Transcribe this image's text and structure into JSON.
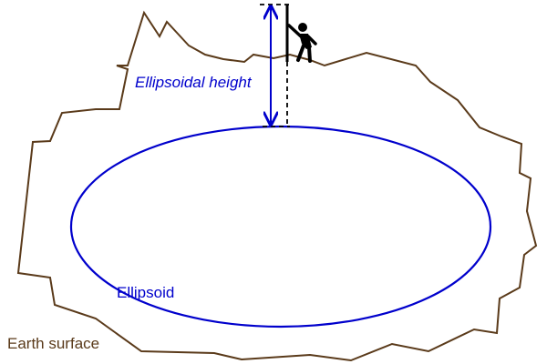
{
  "labels": {
    "height": "Ellipsoidal height",
    "ellipsoid": "Ellipsoid",
    "surface": "Earth surface"
  }
}
